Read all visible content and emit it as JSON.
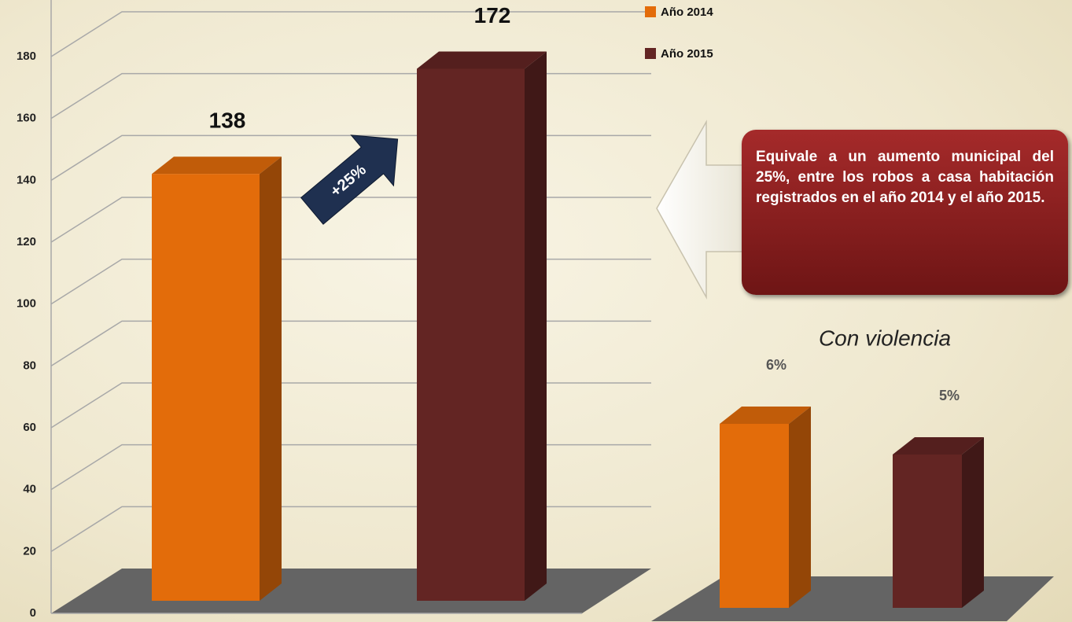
{
  "chart_data": [
    {
      "type": "bar3d",
      "categories": [
        null
      ],
      "series": [
        {
          "name": "Año 2014",
          "color": "#e36c0a",
          "values": [
            138
          ]
        },
        {
          "name": "Año 2015",
          "color": "#632523",
          "values": [
            172
          ]
        }
      ],
      "ylim": [
        0,
        200
      ],
      "yticks": [
        0,
        20,
        40,
        60,
        80,
        100,
        120,
        140,
        160,
        180
      ],
      "grid": true,
      "annotation": "+25%"
    },
    {
      "type": "bar3d",
      "title": "Con violencia",
      "categories": [
        null
      ],
      "series": [
        {
          "name": "Año 2014",
          "color": "#e36c0a",
          "values": [
            6
          ],
          "value_labels": [
            "6%"
          ]
        },
        {
          "name": "Año 2015",
          "color": "#632523",
          "values": [
            5
          ],
          "value_labels": [
            "5%"
          ]
        }
      ]
    }
  ],
  "callout": {
    "text": "Equivale a un aumento municipal del 25%, entre los robos a casa habitación registrados en el año 2014 y el año 2015."
  }
}
